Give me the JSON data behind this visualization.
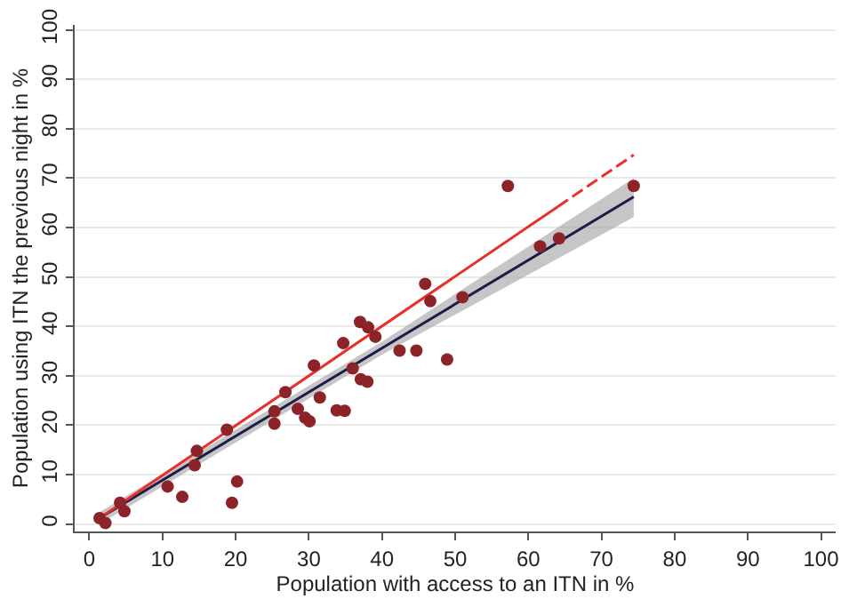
{
  "chart_data": {
    "type": "scatter",
    "xlabel": "Population with access to an ITN in %",
    "ylabel": "Population using ITN the previous night in %",
    "xlim": [
      -2,
      102
    ],
    "ylim": [
      -1.5,
      101
    ],
    "xticks": [
      0,
      10,
      20,
      30,
      40,
      50,
      60,
      70,
      80,
      90,
      100
    ],
    "yticks": [
      0,
      10,
      20,
      30,
      40,
      50,
      60,
      70,
      80,
      90,
      100
    ],
    "grid": "y",
    "marker": "circle",
    "series": [
      {
        "type": "line",
        "color": "#1c1c4a",
        "x": [
          1.4,
          20,
          40,
          74.4
        ],
        "values": [
          1.2,
          17.8,
          35.6,
          66.2
        ],
        "lower": [
          0,
          16.5,
          34.3,
          62.1
        ],
        "upper": [
          2.4,
          19.1,
          36.9,
          70.0
        ],
        "marker": "none",
        "line_style": "solid"
      },
      {
        "type": "line",
        "color": "#e8302a",
        "x": [
          1.4,
          64
        ],
        "values": [
          1.2,
          64.2
        ],
        "marker": "none",
        "line_style": "solid"
      },
      {
        "type": "line",
        "color": "#e8302a",
        "x": [
          64,
          74.4
        ],
        "values": [
          64.2,
          74.7
        ],
        "marker": "none",
        "line_style": "dashed"
      },
      {
        "color": "#8b2329",
        "x": [
          1.4,
          2.2,
          4.2,
          4.8,
          10.7,
          12.7,
          14.7,
          14.4,
          18.8,
          19.5,
          20.2,
          25.3,
          25.3,
          26.8,
          28.5,
          29.5,
          30.1,
          30.7,
          31.5,
          33.8,
          34.9,
          34.7,
          36.0,
          37.0,
          37.1,
          38.0,
          38.1,
          39.1,
          42.4,
          44.7,
          45.9,
          46.6,
          48.9,
          51.0,
          57.2,
          61.6,
          64.2,
          74.4
        ],
        "values": [
          1.2,
          0.2,
          4.3,
          2.6,
          7.6,
          5.5,
          14.8,
          11.9,
          19.1,
          4.3,
          8.6,
          22.8,
          20.3,
          26.7,
          23.3,
          21.5,
          20.8,
          32.1,
          25.6,
          23.0,
          22.9,
          36.6,
          31.5,
          40.9,
          29.3,
          28.8,
          39.8,
          37.9,
          35.1,
          35.1,
          48.6,
          45.1,
          33.3,
          45.9,
          68.4,
          56.2,
          57.8,
          68.4
        ]
      }
    ]
  }
}
